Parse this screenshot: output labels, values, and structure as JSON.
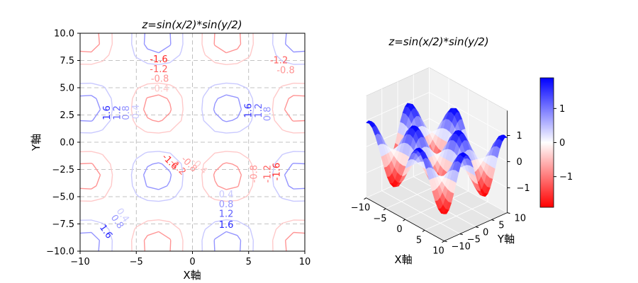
{
  "chart_data": [
    {
      "type": "contour",
      "title": "z=sin(x/2)*sin(y/2)",
      "function": "sin(x/2)*sin(y/2)",
      "xlabel": "X軸",
      "ylabel": "Y軸",
      "xlim": [
        -10,
        10
      ],
      "ylim": [
        -10,
        10
      ],
      "xticks": [
        -10,
        -5,
        0,
        5,
        10
      ],
      "yticks": [
        -10.0,
        -7.5,
        -5.0,
        -2.5,
        0.0,
        2.5,
        5.0,
        7.5,
        10.0
      ],
      "xtick_labels": [
        "−10",
        "−5",
        "0",
        "5",
        "10"
      ],
      "ytick_labels": [
        "−10.0",
        "−7.5",
        "−5.0",
        "−2.5",
        "0.0",
        "2.5",
        "5.0",
        "7.5",
        "10.0"
      ],
      "levels": [
        -1.6,
        -1.2,
        -0.8,
        -0.4,
        0.4,
        0.8,
        1.2,
        1.6
      ],
      "colormap": "bwr_r",
      "grid": true,
      "grid_style": "dashed",
      "contour_labels": [
        {
          "text": "-1.6",
          "x": -3.0,
          "y": 7.6,
          "value": -1.6
        },
        {
          "text": "-1.2",
          "x": -3.0,
          "y": 6.7,
          "value": -1.2
        },
        {
          "text": "-0.8",
          "x": -2.9,
          "y": 5.8,
          "value": -0.8
        },
        {
          "text": "-0.4",
          "x": -2.9,
          "y": 4.9,
          "value": -0.4
        },
        {
          "text": "-1.2",
          "x": 7.7,
          "y": 7.5,
          "value": -1.2
        },
        {
          "text": "-0.8",
          "x": 8.3,
          "y": 6.6,
          "value": -0.8
        },
        {
          "text": "-1.6",
          "x": -2.0,
          "y": -1.8,
          "value": -1.6,
          "rotation": 45
        },
        {
          "text": "-1.2",
          "x": -1.3,
          "y": -2.3,
          "value": -1.2,
          "rotation": 45
        },
        {
          "text": "-0.8",
          "x": -0.3,
          "y": -2.0,
          "value": -0.8,
          "rotation": 45
        },
        {
          "text": "-0.4",
          "x": 0.6,
          "y": -2.2,
          "value": -0.4,
          "rotation": 45
        },
        {
          "text": "-0.8",
          "x": 5.5,
          "y": -2.9,
          "value": -0.8,
          "rotation": -90
        },
        {
          "text": "-1.2",
          "x": 6.7,
          "y": -2.9,
          "value": -1.2,
          "rotation": -90
        },
        {
          "text": "-1.6",
          "x": 7.5,
          "y": -2.7,
          "value": -1.6,
          "rotation": -90
        },
        {
          "text": "1.6",
          "x": -7.6,
          "y": 2.7,
          "value": 1.6,
          "rotation": -90
        },
        {
          "text": "1.2",
          "x": -6.7,
          "y": 2.7,
          "value": 1.2,
          "rotation": -90
        },
        {
          "text": "0.8",
          "x": -5.9,
          "y": 2.7,
          "value": 0.8,
          "rotation": -90
        },
        {
          "text": "0.4",
          "x": -5.0,
          "y": 2.8,
          "value": 0.4,
          "rotation": -90
        },
        {
          "text": "1.6",
          "x": 5.0,
          "y": 2.9,
          "value": 1.6,
          "rotation": -90
        },
        {
          "text": "1.2",
          "x": 5.9,
          "y": 2.9,
          "value": 1.2,
          "rotation": -90
        },
        {
          "text": "0.8",
          "x": 6.7,
          "y": 2.6,
          "value": 0.8,
          "rotation": -90
        },
        {
          "text": "0.4",
          "x": 3.0,
          "y": -4.8,
          "value": 0.4
        },
        {
          "text": "0.8",
          "x": 3.0,
          "y": -5.7,
          "value": 0.8
        },
        {
          "text": "1.2",
          "x": 3.0,
          "y": -6.6,
          "value": 1.2
        },
        {
          "text": "1.6",
          "x": 3.0,
          "y": -7.6,
          "value": 1.6
        },
        {
          "text": "0.4",
          "x": -6.2,
          "y": -6.7,
          "value": 0.4,
          "rotation": 55
        },
        {
          "text": "0.8",
          "x": -6.7,
          "y": -7.3,
          "value": 0.8,
          "rotation": 55
        },
        {
          "text": "1.6",
          "x": -7.7,
          "y": -8.2,
          "value": 1.6,
          "rotation": 55
        }
      ]
    },
    {
      "type": "surface3d",
      "title": "z=sin(x/2)*sin(y/2)",
      "function": "sin(x/2)*sin(y/2)",
      "xlabel": "X軸",
      "ylabel": "Y軸",
      "xlim": [
        -10,
        10
      ],
      "ylim": [
        -10,
        10
      ],
      "zlim": [
        -1.95,
        1.95
      ],
      "xticks": [
        -10,
        -5,
        0,
        5,
        10
      ],
      "yticks": [
        -10,
        -5,
        0,
        5,
        10
      ],
      "zticks": [
        -1,
        0,
        1
      ],
      "xtick_labels": [
        "−10",
        "−5",
        "0",
        "5",
        "10"
      ],
      "ytick_labels": [
        "−10",
        "−5",
        "0",
        "5",
        "10"
      ],
      "ztick_labels": [
        "−1",
        "0",
        "1"
      ],
      "colormap": "bwr_r",
      "colorbar": {
        "ticks": [
          -1,
          0,
          1
        ],
        "tick_labels": [
          "−1",
          "0",
          "1"
        ],
        "range": [
          -1.9,
          1.9
        ]
      }
    }
  ]
}
